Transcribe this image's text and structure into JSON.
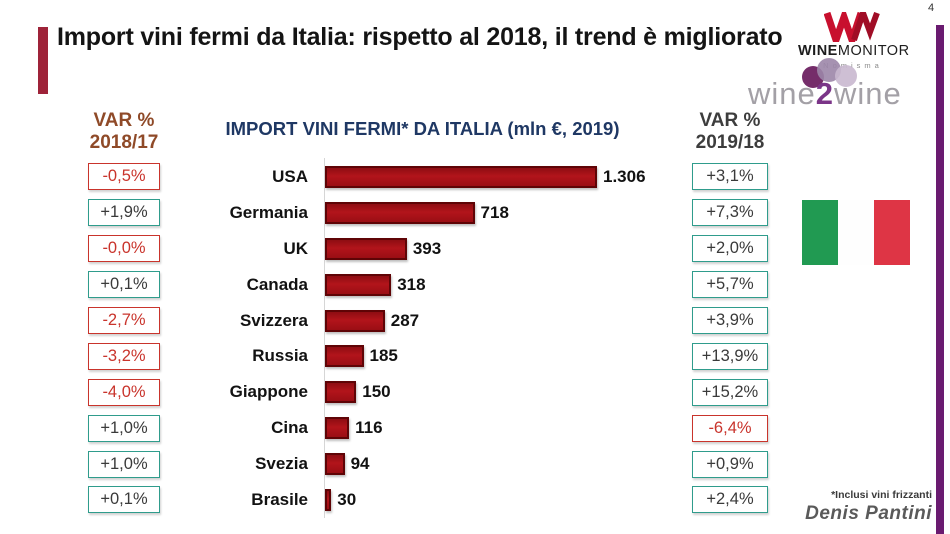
{
  "page_number": "4",
  "slide_title": "Import vini fermi da Italia: rispetto al 2018, il trend è migliorato",
  "logos": {
    "winemonitor": {
      "brand_bold": "WINE",
      "brand_regular": "MONITOR",
      "subbrand": "Nomisma"
    },
    "wine2wine": {
      "part1": "wine",
      "part2": "2",
      "part3": "wine"
    }
  },
  "chart_data": {
    "type": "bar",
    "orientation": "horizontal",
    "title": "IMPORT VINI FERMI* DA ITALIA (mln €, 2019)",
    "categories": [
      "USA",
      "Germania",
      "UK",
      "Canada",
      "Svizzera",
      "Russia",
      "Giappone",
      "Cina",
      "Svezia",
      "Brasile"
    ],
    "values": [
      1306,
      718,
      393,
      318,
      287,
      185,
      150,
      116,
      94,
      30
    ],
    "value_labels": [
      "1.306",
      "718",
      "393",
      "318",
      "287",
      "185",
      "150",
      "116",
      "94",
      "30"
    ],
    "xlim": [
      0,
      1400
    ],
    "grid": false,
    "legend": false,
    "bar_color": "#A50F15",
    "var_2018_17": {
      "header_line1": "VAR %",
      "header_line2": "2018/17",
      "values": [
        "-0,5%",
        "+1,9%",
        "-0,0%",
        "+0,1%",
        "-2,7%",
        "-3,2%",
        "-4,0%",
        "+1,0%",
        "+1,0%",
        "+0,1%"
      ]
    },
    "var_2019_18": {
      "header_line1": "VAR %",
      "header_line2": "2019/18",
      "values": [
        "+3,1%",
        "+7,3%",
        "+2,0%",
        "+5,7%",
        "+3,9%",
        "+13,9%",
        "+15,2%",
        "-6,4%",
        "+0,9%",
        "+2,4%"
      ]
    }
  },
  "footnote": "*Inclusi vini frizzanti",
  "author": "Denis Pantini",
  "colors": {
    "bar_fill": "#A50F15",
    "bar_border": "#5F0406",
    "positive_box_border": "#2F9C8C",
    "negative": "#C9342C",
    "chart_title": "#1F3864",
    "left_header": "#8F4A28",
    "right_header": "#3D3D3D",
    "title_accent_bar": "#9E2339",
    "right_side_bar": "#6A1B70",
    "winemonitor_red": "#C8102E",
    "wine2wine_purple": "#7B3588",
    "flag_green": "#219A52",
    "flag_red": "#DE3545"
  }
}
